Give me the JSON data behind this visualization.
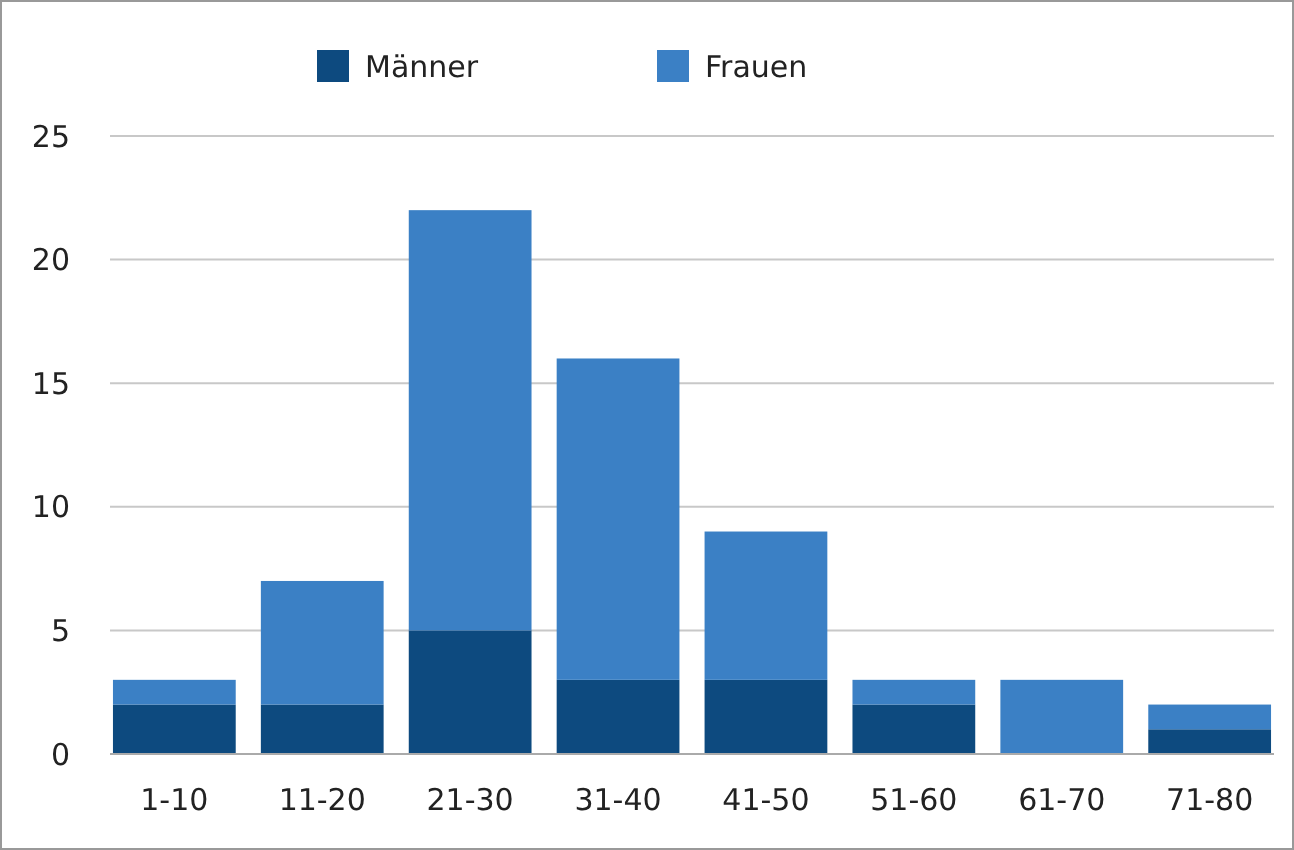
{
  "chart_data": {
    "type": "bar",
    "stacked": true,
    "categories": [
      "1-10",
      "11-20",
      "21-30",
      "31-40",
      "41-50",
      "51-60",
      "61-70",
      "71-80"
    ],
    "series": [
      {
        "name": "Männer",
        "color": "#0d4a7f",
        "values": [
          2,
          2,
          5,
          3,
          3,
          2,
          0,
          1
        ]
      },
      {
        "name": "Frauen",
        "color": "#3b80c5",
        "values": [
          1,
          5,
          17,
          13,
          6,
          1,
          3,
          1
        ]
      }
    ],
    "ylim": [
      0,
      25
    ],
    "yticks": [
      0,
      5,
      10,
      15,
      20,
      25
    ],
    "grid": "y",
    "legend": "top"
  }
}
